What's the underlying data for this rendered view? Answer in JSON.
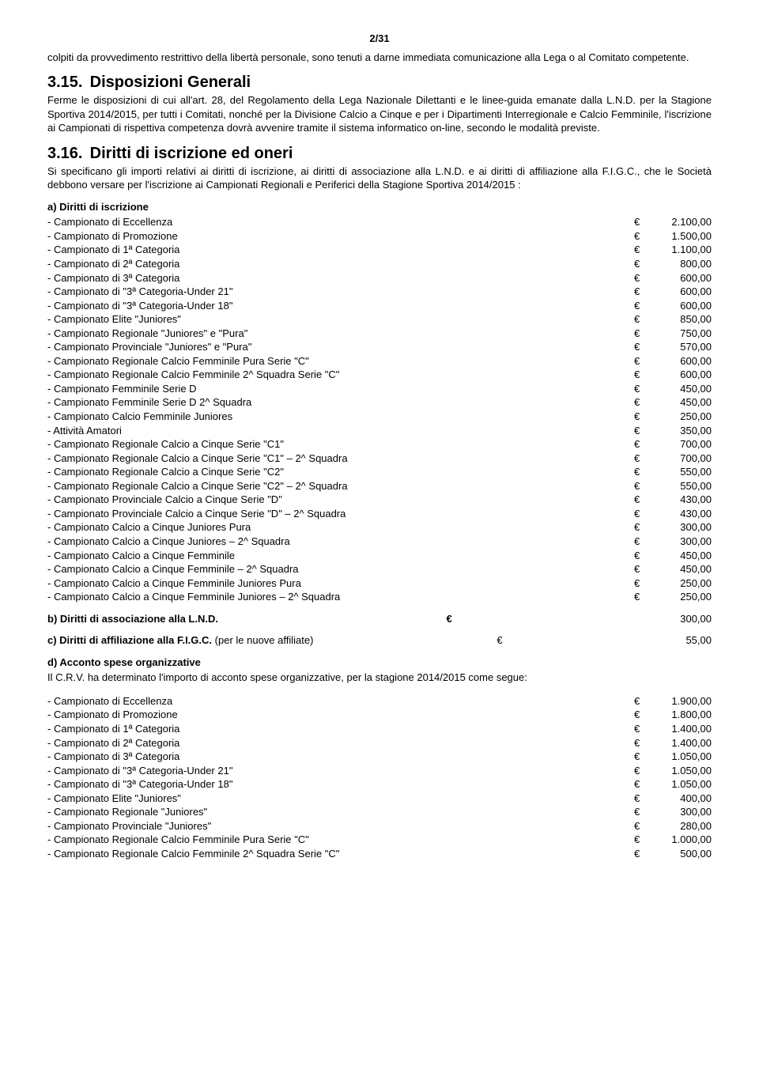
{
  "pageNumber": "2/31",
  "para1": "colpiti da provvedimento restrittivo della libertà personale, sono tenuti a darne immediata comunicazione alla Lega o al Comitato competente.",
  "section315": {
    "num": "3.15.",
    "title": "Disposizioni Generali",
    "body": "Ferme le disposizioni di cui all'art. 28, del Regolamento della Lega Nazionale Dilettanti e le linee-guida emanate dalla L.N.D. per la Stagione Sportiva 2014/2015, per tutti i Comitati, nonché per la Divisione Calcio a Cinque e per i Dipartimenti Interregionale e Calcio Femminile, l'iscrizione ai Campionati di rispettiva competenza dovrà avvenire tramite il sistema informatico on-line, secondo le modalità previste."
  },
  "section316": {
    "num": "3.16.",
    "title": "Diritti di iscrizione ed oneri",
    "body": "Si specificano gli importi relativi ai diritti di iscrizione, ai diritti di associazione alla L.N.D. e ai diritti di affiliazione alla F.I.G.C., che le Società debbono versare per l'iscrizione ai Campionati Regionali e Periferici della Stagione Sportiva 2014/2015 :"
  },
  "sectionA": {
    "title": "a)  Diritti di iscrizione",
    "rows": [
      {
        "l": "- Campionato di Eccellenza",
        "a": "2.100,00"
      },
      {
        "l": "- Campionato di Promozione",
        "a": "1.500,00"
      },
      {
        "l": "- Campionato di 1ª Categoria",
        "a": "1.100,00"
      },
      {
        "l": "- Campionato di 2ª Categoria",
        "a": "800,00"
      },
      {
        "l": "- Campionato di 3ª Categoria",
        "a": "600,00"
      },
      {
        "l": "- Campionato di \"3ª Categoria-Under 21\"",
        "a": "600,00"
      },
      {
        "l": "- Campionato di \"3ª Categoria-Under 18\"",
        "a": "600,00"
      },
      {
        "l": "- Campionato Elite \"Juniores\"",
        "a": "850,00"
      },
      {
        "l": "- Campionato Regionale \"Juniores\" e \"Pura\"",
        "a": "750,00"
      },
      {
        "l": "- Campionato Provinciale \"Juniores\" e \"Pura\"",
        "a": "570,00"
      },
      {
        "l": "- Campionato Regionale Calcio Femminile Pura Serie \"C\"",
        "a": "600,00"
      },
      {
        "l": "- Campionato Regionale Calcio Femminile 2^ Squadra Serie \"C\"",
        "a": "600,00"
      },
      {
        "l": "- Campionato Femminile Serie D",
        "a": "450,00"
      },
      {
        "l": "- Campionato Femminile Serie D 2^ Squadra",
        "a": "450,00"
      },
      {
        "l": "- Campionato Calcio Femminile Juniores",
        "a": "250,00"
      },
      {
        "l": "- Attività Amatori",
        "a": "350,00"
      },
      {
        "l": "- Campionato Regionale Calcio a Cinque Serie \"C1\"",
        "a": "700,00"
      },
      {
        "l": "- Campionato Regionale Calcio a Cinque Serie \"C1\" – 2^ Squadra",
        "a": "700,00"
      },
      {
        "l": "- Campionato Regionale Calcio a Cinque Serie \"C2\"",
        "a": "550,00"
      },
      {
        "l": "- Campionato Regionale Calcio a Cinque Serie \"C2\" – 2^ Squadra",
        "a": "550,00"
      },
      {
        "l": "- Campionato Provinciale Calcio a Cinque Serie \"D\"",
        "a": "430,00"
      },
      {
        "l": "- Campionato Provinciale Calcio a Cinque Serie \"D\" – 2^ Squadra",
        "a": "430,00"
      },
      {
        "l": "- Campionato Calcio a Cinque Juniores Pura",
        "a": "300,00"
      },
      {
        "l": "- Campionato Calcio a Cinque Juniores – 2^ Squadra",
        "a": "300,00"
      },
      {
        "l": "- Campionato Calcio a Cinque Femminile",
        "a": "450,00"
      },
      {
        "l": "- Campionato Calcio a Cinque Femminile – 2^ Squadra",
        "a": "450,00"
      },
      {
        "l": "- Campionato Calcio a Cinque Femminile Juniores Pura",
        "a": "250,00"
      },
      {
        "l": "- Campionato Calcio a Cinque Femminile Juniores – 2^ Squadra",
        "a": "250,00"
      }
    ]
  },
  "sectionB": {
    "label": "b) Diritti di associazione alla L.N.D.",
    "amount": "300,00"
  },
  "sectionC": {
    "labelBold": "c) Diritti di affiliazione alla F.I.G.C.",
    "labelNormal": " (per le nuove affiliate)",
    "amount": "55,00"
  },
  "sectionD": {
    "title": "d) Acconto spese organizzative",
    "intro": "Il C.R.V. ha determinato l'importo di acconto spese organizzative, per la stagione 2014/2015 come segue:",
    "rows": [
      {
        "l": "- Campionato di Eccellenza",
        "a": "1.900,00"
      },
      {
        "l": "- Campionato di Promozione",
        "a": "1.800,00"
      },
      {
        "l": "- Campionato di 1ª Categoria",
        "a": "1.400,00"
      },
      {
        "l": "- Campionato di 2ª Categoria",
        "a": "1.400,00"
      },
      {
        "l": "- Campionato di 3ª Categoria",
        "a": "1.050,00"
      },
      {
        "l": "- Campionato di \"3ª Categoria-Under 21\"",
        "a": "1.050,00"
      },
      {
        "l": "- Campionato di \"3ª Categoria-Under 18\"",
        "a": "1.050,00"
      },
      {
        "l": "- Campionato Elite \"Juniores\"",
        "a": "400,00"
      },
      {
        "l": "- Campionato Regionale \"Juniores\"",
        "a": "300,00"
      },
      {
        "l": "- Campionato Provinciale \"Juniores\"",
        "a": "280,00"
      },
      {
        "l": "- Campionato Regionale Calcio Femminile Pura Serie \"C\"",
        "a": "1.000,00"
      },
      {
        "l": "- Campionato Regionale Calcio Femminile 2^ Squadra Serie \"C\"",
        "a": "500,00"
      }
    ]
  },
  "euro": "€"
}
